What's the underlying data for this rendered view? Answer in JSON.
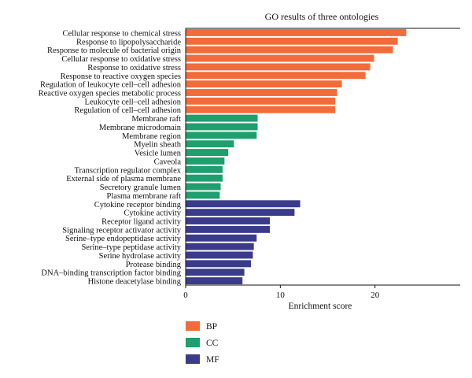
{
  "chart_data": {
    "type": "bar",
    "orientation": "horizontal",
    "title": "GO results of three ontologies",
    "xlabel": "Enrichment score",
    "ylabel": "",
    "xlim": [
      0,
      29
    ],
    "xticks": [
      0,
      10,
      20
    ],
    "grid": false,
    "legend_position": "bottom-left",
    "colors": {
      "BP": "#f26b3a",
      "CC": "#1f9e6e",
      "MF": "#3b3b8c"
    },
    "legend": [
      {
        "label": "BP",
        "color": "#f26b3a"
      },
      {
        "label": "CC",
        "color": "#1f9e6e"
      },
      {
        "label": "MF",
        "color": "#3b3b8c"
      }
    ],
    "categories": [
      "Cellular response to chemical stress",
      "Response to lipopolysaccharide",
      "Response to molecule of bacterial origin",
      "Cellular response to oxidative stress",
      "Response to oxidative stress",
      "Response to reactive oxygen species",
      "Regulation of leukocyte cell–cell adhesion",
      "Reactive oxygen species metabolic process",
      "Leukocyte cell–cell adhesion",
      "Regulation of cell–cell adhesion",
      "Membrane raft",
      "Membrane microdomain",
      "Membrane region",
      "Myelin sheath",
      "Vesicle lumen",
      "Caveola",
      "Transcription regulator complex",
      "External side of plasma membrane",
      "Secretory granule lumen",
      "Plasma membrane raft",
      "Cytokine receptor binding",
      "Cytokine activity",
      "Receptor ligand activity",
      "Signaling receptor activator activity",
      "Serine–type endopeptidase activity",
      "Serine–type peptidase activity",
      "Serine hydrolase activity",
      "Protease binding",
      "DNA–binding transcription factor binding",
      "Histone deacetylase binding"
    ],
    "values": [
      23.3,
      22.4,
      21.9,
      19.9,
      19.5,
      19.0,
      16.5,
      16.0,
      15.8,
      15.8,
      7.6,
      7.6,
      7.5,
      5.1,
      4.5,
      4.1,
      3.9,
      3.9,
      3.7,
      3.6,
      12.1,
      11.5,
      8.9,
      8.9,
      7.5,
      7.2,
      7.1,
      6.9,
      6.2,
      6.0
    ],
    "groups": [
      "BP",
      "BP",
      "BP",
      "BP",
      "BP",
      "BP",
      "BP",
      "BP",
      "BP",
      "BP",
      "CC",
      "CC",
      "CC",
      "CC",
      "CC",
      "CC",
      "CC",
      "CC",
      "CC",
      "CC",
      "MF",
      "MF",
      "MF",
      "MF",
      "MF",
      "MF",
      "MF",
      "MF",
      "MF",
      "MF"
    ]
  }
}
